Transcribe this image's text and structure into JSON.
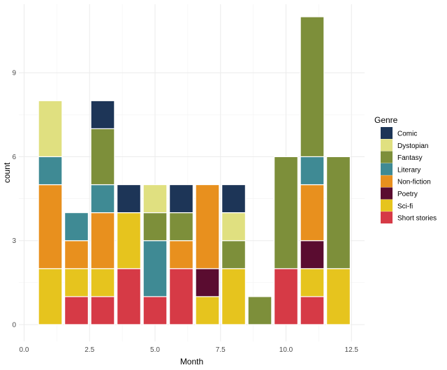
{
  "chart_data": {
    "type": "bar",
    "stacked": true,
    "xlabel": "Month",
    "ylabel": "count",
    "xlim": [
      -0.2,
      13.0
    ],
    "ylim": [
      -0.6,
      11.45
    ],
    "x_ticks": [
      0.0,
      2.5,
      5.0,
      7.5,
      10.0,
      12.5
    ],
    "x_tick_labels": [
      "0.0",
      "2.5",
      "5.0",
      "7.5",
      "10.0",
      "12.5"
    ],
    "y_ticks": [
      0,
      3,
      6,
      9
    ],
    "y_tick_labels": [
      "0",
      "3",
      "6",
      "9"
    ],
    "legend": {
      "title": "Genre",
      "position": "right",
      "entries": [
        "Comic",
        "Dystopian",
        "Fantasy",
        "Literary",
        "Non-fiction",
        "Poetry",
        "Sci-fi",
        "Short stories"
      ]
    },
    "colors": {
      "Comic": "#1d3557",
      "Dystopian": "#e0e080",
      "Fantasy": "#7d8f3a",
      "Literary": "#3f8a94",
      "Non-fiction": "#e8901e",
      "Poetry": "#5a0c30",
      "Sci-fi": "#e6c41e",
      "Short stories": "#d63a46"
    },
    "stack_order": [
      "Short stories",
      "Sci-fi",
      "Poetry",
      "Non-fiction",
      "Literary",
      "Fantasy",
      "Dystopian",
      "Comic"
    ],
    "categories": [
      1,
      2,
      3,
      4,
      5,
      6,
      7,
      8,
      9,
      10,
      11,
      12
    ],
    "series": [
      {
        "name": "Comic",
        "values": [
          0,
          0,
          1,
          1,
          0,
          1,
          0,
          1,
          0,
          0,
          0,
          0
        ]
      },
      {
        "name": "Dystopian",
        "values": [
          2,
          0,
          0,
          0,
          1,
          0,
          0,
          1,
          0,
          0,
          0,
          0
        ]
      },
      {
        "name": "Fantasy",
        "values": [
          0,
          0,
          2,
          0,
          1,
          1,
          0,
          1,
          1,
          4,
          5,
          4
        ]
      },
      {
        "name": "Literary",
        "values": [
          1,
          1,
          1,
          0,
          2,
          0,
          0,
          0,
          0,
          0,
          1,
          0
        ]
      },
      {
        "name": "Non-fiction",
        "values": [
          3,
          1,
          2,
          0,
          0,
          1,
          3,
          0,
          0,
          0,
          2,
          0
        ]
      },
      {
        "name": "Poetry",
        "values": [
          0,
          0,
          0,
          0,
          0,
          0,
          1,
          0,
          0,
          0,
          1,
          0
        ]
      },
      {
        "name": "Sci-fi",
        "values": [
          2,
          1,
          1,
          2,
          0,
          0,
          1,
          2,
          0,
          0,
          1,
          2
        ]
      },
      {
        "name": "Short stories",
        "values": [
          0,
          1,
          1,
          2,
          1,
          2,
          0,
          0,
          0,
          2,
          1,
          0
        ]
      }
    ]
  }
}
